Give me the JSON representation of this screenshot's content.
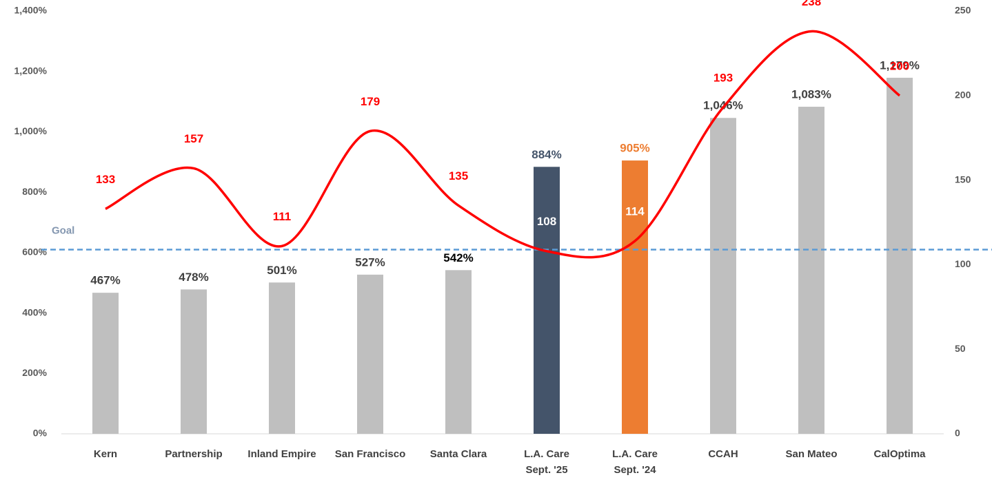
{
  "chart_data": {
    "type": "bar-line",
    "categories": [
      "Kern",
      "Partnership",
      "Inland Empire",
      "San Francisco",
      "Santa Clara",
      "L.A. Care\nSept. '25",
      "L.A. Care\nSept. '24",
      "CCAH",
      "San Mateo",
      "CalOptima"
    ],
    "series": [
      {
        "type": "bar",
        "axis": "y",
        "colors": [
          "#bfbfbf",
          "#bfbfbf",
          "#bfbfbf",
          "#bfbfbf",
          "#bfbfbf",
          "#44546a",
          "#ed7d31",
          "#bfbfbf",
          "#bfbfbf",
          "#bfbfbf"
        ],
        "values": [
          467,
          478,
          501,
          527,
          542,
          884,
          905,
          1046,
          1083,
          1179
        ],
        "value_labels": [
          "467%",
          "478%",
          "501%",
          "527%",
          "542%",
          "884%",
          "905%",
          "1,046%",
          "1,083%",
          "1,179%"
        ],
        "label_colors": [
          "#404040",
          "#404040",
          "#404040",
          "#404040",
          "#000000",
          "#44546a",
          "#ed7d31",
          "#404040",
          "#404040",
          "#404040"
        ]
      },
      {
        "type": "line",
        "axis": "y2",
        "color": "#ff0000",
        "values": [
          133,
          157,
          111,
          179,
          135,
          108,
          114,
          193,
          238,
          200
        ],
        "label_colors": [
          "#ff0000",
          "#ff0000",
          "#ff0000",
          "#ff0000",
          "#ff0000",
          "#ffffff",
          "#ffffff",
          "#ff0000",
          "#ff0000",
          "#ff0000"
        ]
      }
    ],
    "ylim": [
      0,
      1400
    ],
    "yticks": [
      {
        "value": 0,
        "label": "0%"
      },
      {
        "value": 200,
        "label": "200%"
      },
      {
        "value": 400,
        "label": "400%"
      },
      {
        "value": 600,
        "label": "600%"
      },
      {
        "value": 800,
        "label": "800%"
      },
      {
        "value": 1000,
        "label": "1,000%"
      },
      {
        "value": 1200,
        "label": "1,200%"
      },
      {
        "value": 1400,
        "label": "1,400%"
      }
    ],
    "y2lim": [
      0,
      250
    ],
    "y2ticks": [
      0,
      50,
      100,
      150,
      200,
      250
    ],
    "goal": {
      "label": "Goal",
      "value": 610,
      "color": "#5b9bd5"
    }
  }
}
